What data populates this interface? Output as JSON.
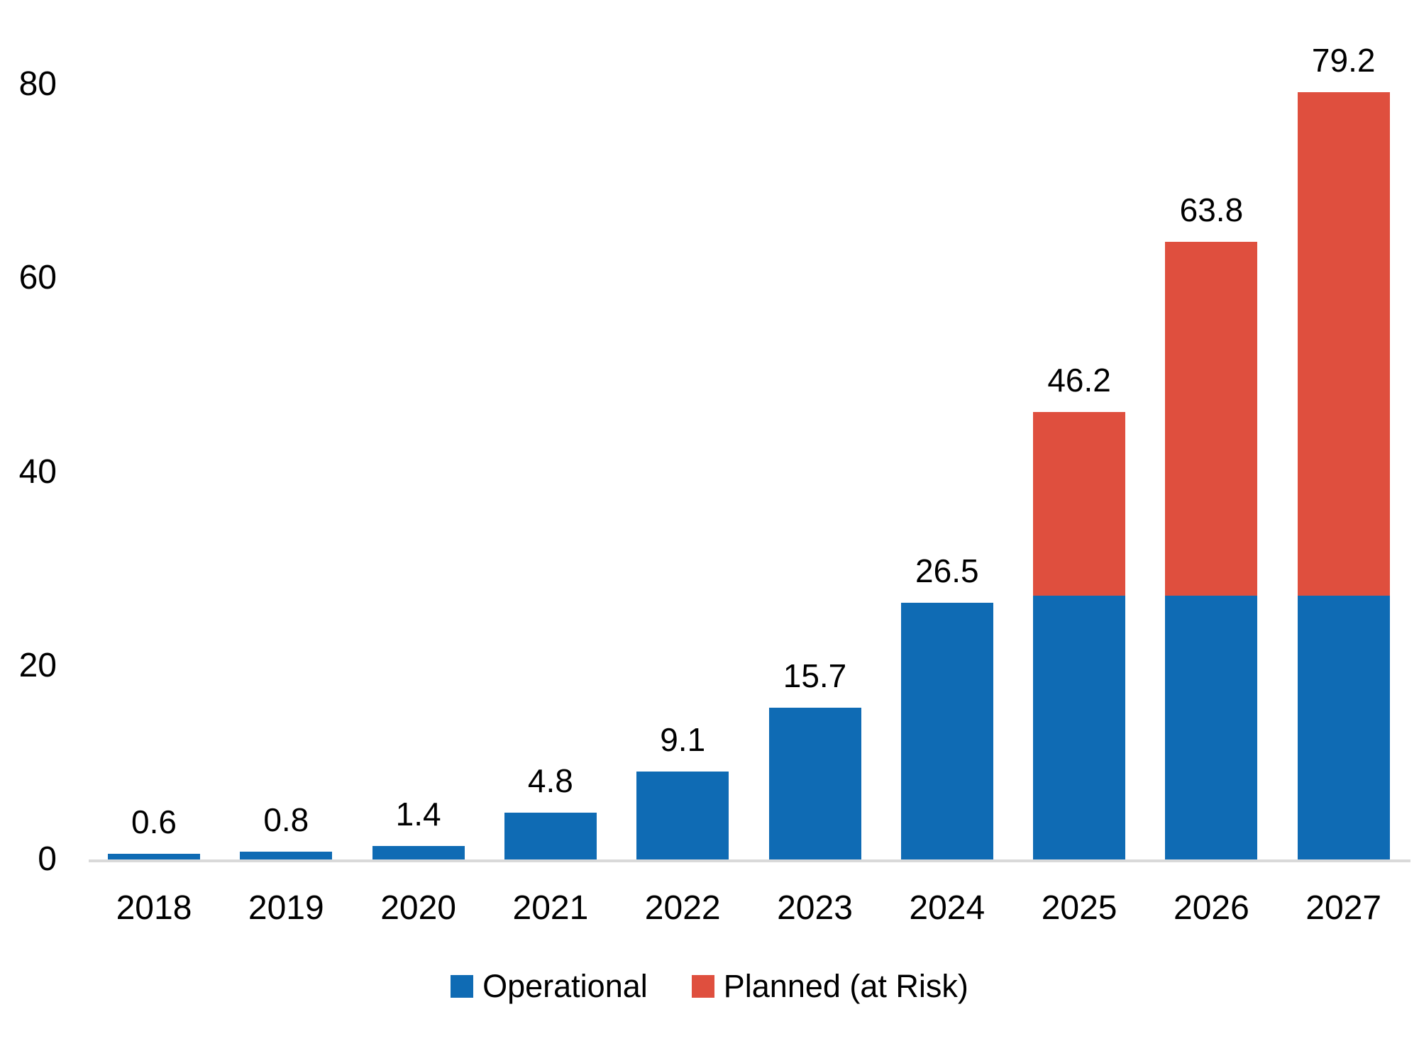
{
  "chart_data": {
    "type": "bar",
    "stacked": true,
    "title": "",
    "xlabel": "",
    "ylabel": "",
    "categories": [
      "2018",
      "2019",
      "2020",
      "2021",
      "2022",
      "2023",
      "2024",
      "2025",
      "2026",
      "2027"
    ],
    "series": [
      {
        "name": "Operational",
        "color": "#0F6BB4",
        "values": [
          0.6,
          0.8,
          1.4,
          4.8,
          9.1,
          15.7,
          26.5,
          27.2,
          27.2,
          27.2
        ]
      },
      {
        "name": "Planned (at Risk)",
        "color": "#DF4F3E",
        "values": [
          0,
          0,
          0,
          0,
          0,
          0,
          0,
          19.0,
          36.6,
          52.0
        ]
      }
    ],
    "totals": [
      0.6,
      0.8,
      1.4,
      4.8,
      9.1,
      15.7,
      26.5,
      46.2,
      63.8,
      79.2
    ],
    "total_labels": [
      "0.6",
      "0.8",
      "1.4",
      "4.8",
      "9.1",
      "15.7",
      "26.5",
      "46.2",
      "63.8",
      "79.2"
    ],
    "y_ticks": [
      "0",
      "20",
      "40",
      "60",
      "80"
    ],
    "y_tick_values": [
      0,
      20,
      40,
      60,
      80
    ],
    "ylim": [
      0,
      80
    ],
    "grid": false,
    "legend_position": "bottom",
    "axis_line_color": "#D9D9D9",
    "label_color": "#000000",
    "background_color": "#FFFFFF"
  },
  "legend": {
    "items": [
      {
        "label": "Operational"
      },
      {
        "label": "Planned (at Risk)"
      }
    ]
  }
}
